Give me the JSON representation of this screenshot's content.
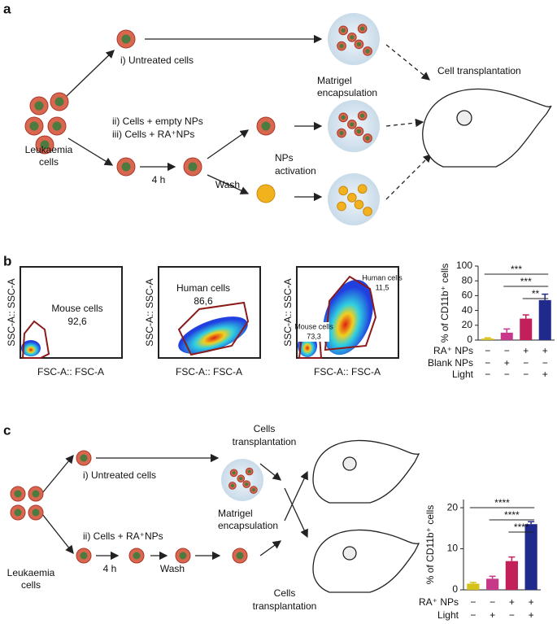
{
  "panel_labels": [
    "a",
    "b",
    "c"
  ],
  "panel_a": {
    "untreated": "i) Untreated cells",
    "empty": "ii) Cells + empty NPs",
    "ra": "iii) Cells + RA⁺NPs",
    "leukaemia": [
      "Leukaemia",
      "cells"
    ],
    "incubation": "4 h",
    "wash": "Wash",
    "activation": [
      "NPs",
      "activation"
    ],
    "matrigel": [
      "Matrigel",
      "encapsulation"
    ],
    "transplant": "Cell transplantation"
  },
  "panel_b": {
    "y_axis": "SSC-A:: SSC-A",
    "x_axis": "FSC-A:: FSC-A",
    "gates": [
      {
        "name": "Mouse cells",
        "value": "92,6"
      },
      {
        "name": "Human cells",
        "value": "86,6"
      },
      {
        "name": "Human cells",
        "value": "11,5"
      },
      {
        "name": "Mouse cells",
        "value": "73,3"
      }
    ]
  },
  "panel_c": {
    "untreated": "i) Untreated cells",
    "ra": "ii) Cells + RA⁺NPs",
    "leukaemia": [
      "Leukaemia",
      "cells"
    ],
    "incubation": "4 h",
    "wash": "Wash",
    "matrigel": [
      "Matrigel",
      "encapsulation"
    ],
    "transplant_top": [
      "Cells",
      "transplantation"
    ],
    "transplant_bottom": [
      "Cells",
      "transplantation"
    ]
  },
  "chart_data": [
    {
      "type": "bar",
      "ylabel": "% of CD11b⁺ cells",
      "ylim": [
        0,
        100
      ],
      "yticks": [
        0,
        20,
        40,
        60,
        80,
        100
      ],
      "values": [
        2,
        10,
        29,
        54
      ],
      "errors": [
        1,
        5,
        5,
        8
      ],
      "colors": [
        "#d4c21a",
        "#c8388a",
        "#c21f5b",
        "#1f2a8c"
      ],
      "conditions": [
        {
          "name": "RA⁺ NPs",
          "values": [
            "−",
            "−",
            "+",
            "+"
          ]
        },
        {
          "name": "Blank NPs",
          "values": [
            "−",
            "+",
            "−",
            "−"
          ]
        },
        {
          "name": "Light",
          "values": [
            "−",
            "−",
            "−",
            "+"
          ]
        }
      ],
      "significance": [
        "***",
        "***",
        "**"
      ]
    },
    {
      "type": "bar",
      "ylabel": "% of CD11b⁺ cells",
      "ylim": [
        0,
        22
      ],
      "yticks": [
        0,
        10,
        20
      ],
      "values": [
        1.5,
        2.7,
        7,
        16
      ],
      "errors": [
        0.3,
        0.6,
        1,
        0.6
      ],
      "colors": [
        "#d4c21a",
        "#c8388a",
        "#c21f5b",
        "#1f2a8c"
      ],
      "conditions": [
        {
          "name": "RA⁺ NPs",
          "values": [
            "−",
            "−",
            "+",
            "+"
          ]
        },
        {
          "name": "Light",
          "values": [
            "−",
            "+",
            "−",
            "+"
          ]
        }
      ],
      "significance": [
        "****",
        "****",
        "****"
      ]
    }
  ]
}
